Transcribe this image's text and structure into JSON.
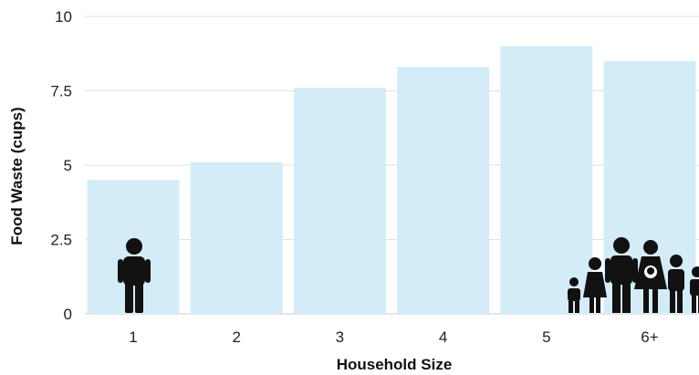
{
  "chart_data": {
    "type": "bar",
    "categories": [
      "1",
      "2",
      "3",
      "4",
      "5",
      "6+"
    ],
    "values": [
      4.5,
      5.1,
      7.6,
      8.3,
      9.0,
      8.5
    ],
    "xlabel": "Household Size",
    "ylabel": "Food Waste (cups)",
    "ylim": [
      0,
      10
    ],
    "yticks": [
      "0",
      "2.5",
      "5",
      "7.5",
      "10"
    ],
    "ytick_values": [
      0,
      2.5,
      5,
      7.5,
      10
    ],
    "grid": true,
    "bar_color": "#d4ecf8",
    "icons": [
      {
        "category": "1",
        "name": "single-person-icon"
      },
      {
        "category": "6+",
        "name": "family-group-icon"
      }
    ]
  }
}
